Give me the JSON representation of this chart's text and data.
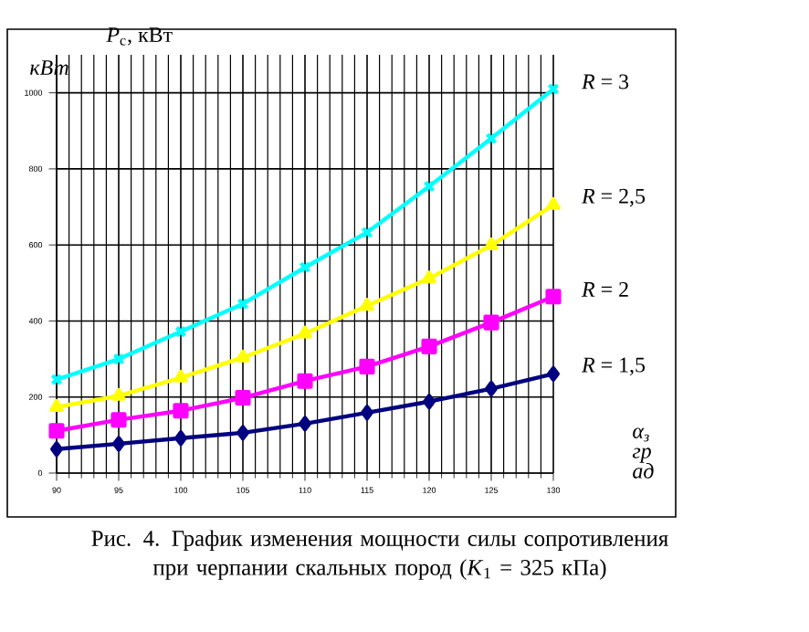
{
  "chart_data": {
    "type": "line",
    "ylabel": "*P*$_{c}$, кВт",
    "xlabel": "α$_{з}$ гр ад",
    "annotations": [
      "кВт",
      "Рис. 4. График изменения мощности силы сопротивления при черпании скальных пород (*K*$_{1}$ = 325 кПа)"
    ],
    "x": [
      90,
      95,
      100,
      105,
      110,
      115,
      120,
      125,
      130
    ],
    "xlim": [
      90,
      130
    ],
    "xticks": [
      90,
      95,
      100,
      105,
      110,
      115,
      120,
      125,
      130
    ],
    "ylim": [
      0,
      1100
    ],
    "yticks": [
      0,
      200,
      400,
      600,
      800,
      1000
    ],
    "grid": true,
    "legend": false,
    "series": [
      {
        "name": "*R* = 3",
        "color": "#00ffff",
        "marker": "cross",
        "values": [
          246,
          300,
          372,
          445,
          541,
          633,
          754,
          880,
          1010
        ]
      },
      {
        "name": "*R* = 2,5",
        "color": "#ffff00",
        "marker": "triangle",
        "values": [
          174,
          203,
          251,
          304,
          367,
          440,
          512,
          599,
          705
        ]
      },
      {
        "name": "*R* = 2",
        "color": "#ff00ff",
        "marker": "square",
        "values": [
          111,
          140,
          164,
          198,
          242,
          280,
          333,
          396,
          464
        ]
      },
      {
        "name": "*R* = 1,5",
        "color": "#000080",
        "marker": "diamond",
        "values": [
          63,
          77,
          92,
          106,
          130,
          159,
          188,
          222,
          261
        ]
      }
    ]
  }
}
